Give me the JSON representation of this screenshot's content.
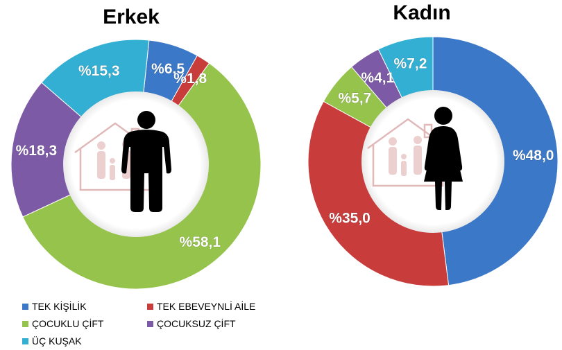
{
  "chart_data": [
    {
      "type": "pie",
      "title": "Erkek",
      "categories": [
        "TEK KİŞİLİK",
        "TEK EBEVEYNLİ  AİLE",
        "ÇOCUKLU ÇİFT",
        "ÇOCUKSUZ ÇİFT",
        "ÜÇ KUŞAK"
      ],
      "values": [
        6.5,
        1.8,
        58.1,
        18.3,
        15.3
      ],
      "labels": [
        "%6,5",
        "%1,8",
        "%58,1",
        "%18,3",
        "%15,3"
      ],
      "donut": true
    },
    {
      "type": "pie",
      "title": "Kadın",
      "categories": [
        "TEK KİŞİLİK",
        "TEK EBEVEYNLİ  AİLE",
        "ÇOCUKLU ÇİFT",
        "ÇOCUKSUZ ÇİFT",
        "ÜÇ KUŞAK"
      ],
      "values": [
        48.0,
        35.0,
        5.7,
        4.1,
        7.2
      ],
      "labels": [
        "%48,0",
        "%35,0",
        "%5,7",
        "%4,1",
        "%7,2"
      ],
      "donut": true
    }
  ],
  "legend": {
    "placement": "bottom-left",
    "items": [
      {
        "label": "TEK KİŞİLİK",
        "color": "#3c78c8"
      },
      {
        "label": "TEK EBEVEYNLİ  AİLE",
        "color": "#c83c3c"
      },
      {
        "label": "ÇOCUKLU ÇİFT",
        "color": "#96c34b"
      },
      {
        "label": "ÇOCUKSUZ ÇİFT",
        "color": "#7d5aa5"
      },
      {
        "label": "ÜÇ KUŞAK",
        "color": "#32afd2"
      }
    ]
  },
  "icons": {
    "left": [
      "house-family-icon",
      "man-silhouette-icon"
    ],
    "right": [
      "house-family-icon",
      "woman-silhouette-icon"
    ]
  }
}
